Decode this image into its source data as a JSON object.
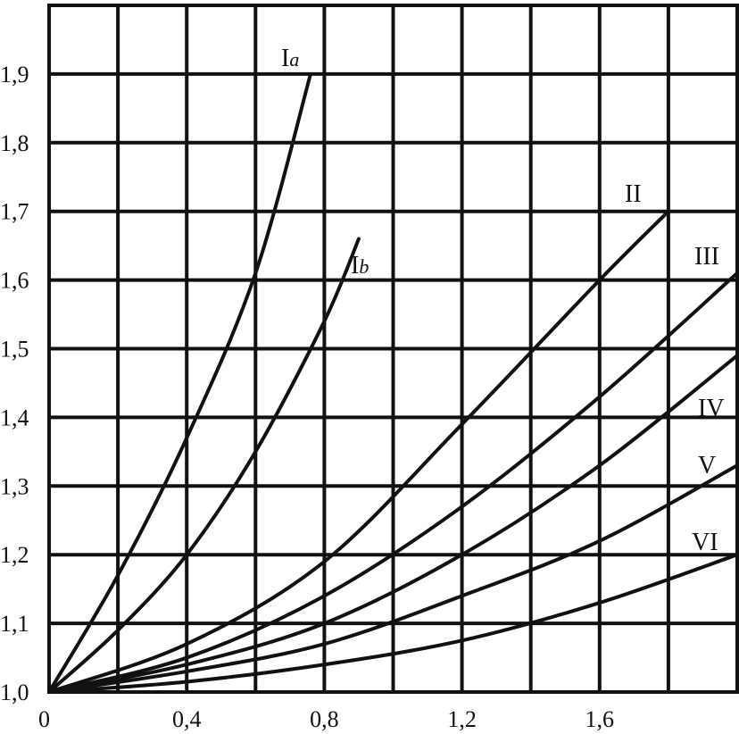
{
  "chart_data": {
    "type": "line",
    "title": "",
    "xlabel": "",
    "ylabel": "",
    "xlim": [
      0,
      2.0
    ],
    "ylim": [
      1.0,
      2.0
    ],
    "grid": true,
    "x_ticks": [
      {
        "value": 0,
        "label": "0"
      },
      {
        "value": 0.4,
        "label": "0,4"
      },
      {
        "value": 0.8,
        "label": "0,8"
      },
      {
        "value": 1.2,
        "label": "1,2"
      },
      {
        "value": 1.6,
        "label": "1,6"
      }
    ],
    "y_ticks": [
      {
        "value": 1.0,
        "label": "1,0"
      },
      {
        "value": 1.1,
        "label": "1,1"
      },
      {
        "value": 1.2,
        "label": "1,2"
      },
      {
        "value": 1.3,
        "label": "1,3"
      },
      {
        "value": 1.4,
        "label": "1,4"
      },
      {
        "value": 1.5,
        "label": "1,5"
      },
      {
        "value": 1.6,
        "label": "1,6"
      },
      {
        "value": 1.7,
        "label": "1,7"
      },
      {
        "value": 1.8,
        "label": "1,8"
      },
      {
        "value": 1.9,
        "label": "1,9"
      }
    ],
    "series": [
      {
        "name": "I",
        "subscript": "a",
        "x": [
          0,
          0.2,
          0.4,
          0.6,
          0.76
        ],
        "y": [
          1.0,
          1.17,
          1.37,
          1.61,
          1.9
        ]
      },
      {
        "name": "I",
        "subscript": "b",
        "x": [
          0,
          0.2,
          0.4,
          0.6,
          0.8,
          0.9
        ],
        "y": [
          1.0,
          1.09,
          1.2,
          1.35,
          1.54,
          1.66
        ]
      },
      {
        "name": "II",
        "x": [
          0,
          0.4,
          0.8,
          1.2,
          1.6,
          1.8
        ],
        "y": [
          1.0,
          1.07,
          1.19,
          1.39,
          1.6,
          1.7
        ]
      },
      {
        "name": "III",
        "x": [
          0,
          0.4,
          0.8,
          1.2,
          1.6,
          2.0
        ],
        "y": [
          1.0,
          1.05,
          1.14,
          1.27,
          1.43,
          1.61
        ]
      },
      {
        "name": "IV",
        "x": [
          0,
          0.4,
          0.8,
          1.2,
          1.6,
          2.0
        ],
        "y": [
          1.0,
          1.04,
          1.1,
          1.2,
          1.33,
          1.49
        ]
      },
      {
        "name": "V",
        "x": [
          0,
          0.4,
          0.8,
          1.2,
          1.6,
          2.0
        ],
        "y": [
          1.0,
          1.03,
          1.07,
          1.14,
          1.22,
          1.33
        ]
      },
      {
        "name": "VI",
        "x": [
          0,
          0.4,
          0.8,
          1.2,
          1.6,
          2.0
        ],
        "y": [
          1.0,
          1.015,
          1.04,
          1.075,
          1.13,
          1.2
        ]
      }
    ]
  }
}
